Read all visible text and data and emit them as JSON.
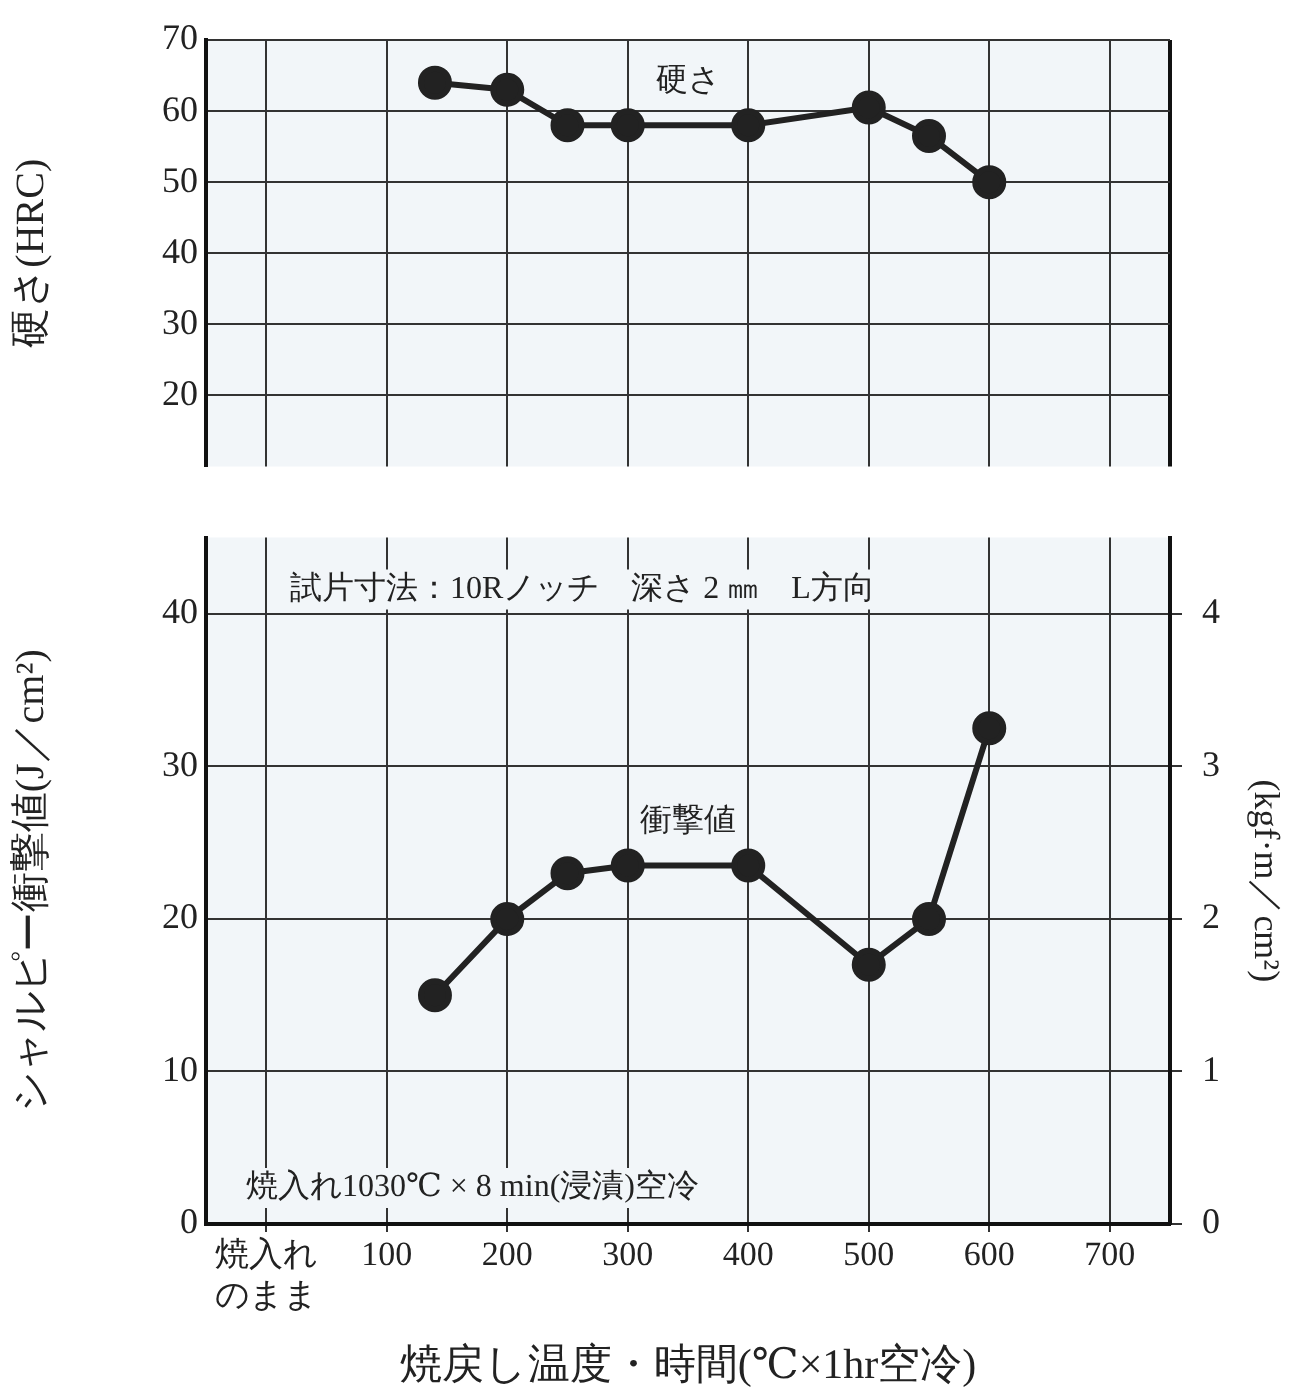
{
  "chart_data": [
    {
      "type": "line",
      "ylabel": "硬さ(HRC)",
      "x": [
        140,
        200,
        250,
        300,
        400,
        500,
        550,
        600
      ],
      "series": [
        {
          "name": "硬さ",
          "color": "#222222",
          "values": [
            64,
            63,
            58,
            58,
            58,
            60.5,
            56.5,
            50
          ]
        }
      ],
      "xlim": [
        -50,
        750
      ],
      "xticks": [
        {
          "value": 0,
          "label": null
        },
        {
          "value": 100,
          "label": null
        },
        {
          "value": 200,
          "label": null
        },
        {
          "value": 300,
          "label": null
        },
        {
          "value": 400,
          "label": null
        },
        {
          "value": 500,
          "label": null
        },
        {
          "value": 600,
          "label": null
        },
        {
          "value": 700,
          "label": null
        }
      ],
      "ylim": [
        10,
        70
      ],
      "yticks": [
        20,
        30,
        40,
        50,
        60,
        70
      ],
      "tick_labels": "y",
      "grid": true,
      "legend": false,
      "marker": "circle",
      "line_style": "solid"
    },
    {
      "type": "line",
      "xlabel": "焼戻し温度・時間(℃×1hr空冷)",
      "ylabel": "シャルピー衝撃値(J／cm²)",
      "y2label": "(kgf·m／cm²)",
      "annotations": [
        "試片寸法：10Rノッチ　深さ 2 ㎜　L方向",
        "焼入れ1030℃ × 8 min(浸漬)空冷"
      ],
      "x": [
        140,
        200,
        250,
        300,
        400,
        500,
        550,
        600
      ],
      "series": [
        {
          "name": "衝撃値",
          "color": "#222222",
          "values": [
            15,
            20,
            23,
            23.5,
            23.5,
            17,
            20,
            32.5
          ]
        }
      ],
      "xlim": [
        -50,
        750
      ],
      "xticks": [
        {
          "value": 0,
          "label": "焼入れのまま"
        },
        100,
        200,
        300,
        400,
        500,
        600,
        700
      ],
      "ylim": [
        0,
        45
      ],
      "yticks": [
        0,
        10,
        20,
        30,
        40
      ],
      "y2lim": [
        0,
        4.5
      ],
      "y2ticks": [
        0,
        1,
        2,
        3,
        4
      ],
      "grid": true,
      "legend": false,
      "marker": "circle",
      "line_style": "solid"
    }
  ]
}
